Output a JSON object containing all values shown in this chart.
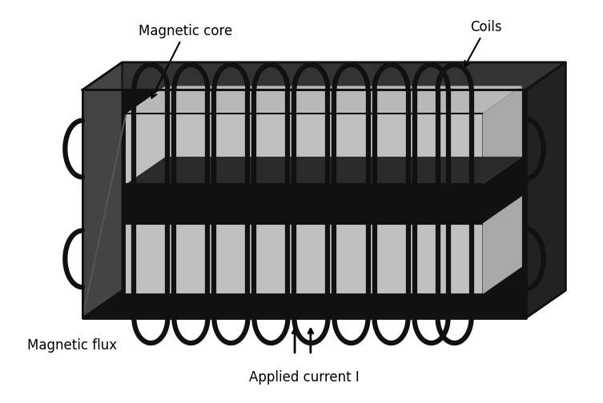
{
  "bg_color": "#ffffff",
  "core_dark": "#111111",
  "core_light": "#c0c0c0",
  "core_light2": "#d0d0d0",
  "coil_color": "#111111",
  "label_magnetic_core": "Magnetic core",
  "label_coils": "Coils",
  "label_magnetic_flux": "Magnetic flux",
  "label_applied_current": "Applied current I",
  "font_size": 12,
  "n_coils": 9,
  "fig_w": 7.53,
  "fig_h": 5.04,
  "dpi": 100
}
